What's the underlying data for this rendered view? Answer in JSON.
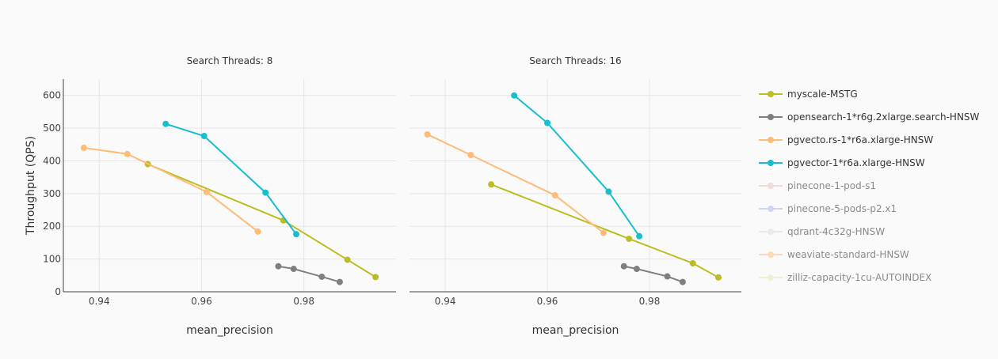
{
  "chart_data": [
    {
      "type": "line",
      "title": "Search Threads: 8",
      "xlabel": "mean_precision",
      "ylabel": "Throughput (QPS)",
      "xlim": [
        0.933,
        0.998
      ],
      "ylim": [
        0,
        650
      ],
      "xticks": [
        0.94,
        0.96,
        0.98
      ],
      "xtick_labels": [
        "0.94",
        "0.96",
        "0.98"
      ],
      "yticks": [
        0,
        100,
        200,
        300,
        400,
        500,
        600
      ],
      "ytick_labels": [
        "0",
        "100",
        "200",
        "300",
        "400",
        "500",
        "600"
      ],
      "grid": true,
      "series": [
        {
          "name": "myscale-MSTG",
          "x": [
            0.9495,
            0.976,
            0.9885,
            0.994
          ],
          "y": [
            390,
            218,
            98,
            45
          ]
        },
        {
          "name": "opensearch-1*r6g.2xlarge.search-HNSW",
          "x": [
            0.975,
            0.978,
            0.9835,
            0.987
          ],
          "y": [
            78,
            70,
            46,
            30
          ]
        },
        {
          "name": "pgvecto.rs-1*r6a.xlarge-HNSW",
          "x": [
            0.937,
            0.9455,
            0.961,
            0.971
          ],
          "y": [
            440,
            421,
            305,
            184
          ]
        },
        {
          "name": "pgvector-1*r6a.xlarge-HNSW",
          "x": [
            0.953,
            0.9605,
            0.9725,
            0.9785
          ],
          "y": [
            513,
            476,
            303,
            176
          ]
        }
      ]
    },
    {
      "type": "line",
      "title": "Search Threads: 16",
      "xlabel": "mean_precision",
      "ylabel": "",
      "xlim": [
        0.933,
        0.998
      ],
      "ylim": [
        0,
        650
      ],
      "xticks": [
        0.94,
        0.96,
        0.98
      ],
      "xtick_labels": [
        "0.94",
        "0.96",
        "0.98"
      ],
      "yticks": [
        0,
        100,
        200,
        300,
        400,
        500,
        600
      ],
      "ytick_labels": [],
      "grid": true,
      "series": [
        {
          "name": "myscale-MSTG",
          "x": [
            0.949,
            0.976,
            0.9885,
            0.9935
          ],
          "y": [
            328,
            162,
            87,
            44
          ]
        },
        {
          "name": "opensearch-1*r6g.2xlarge.search-HNSW",
          "x": [
            0.975,
            0.9775,
            0.9835,
            0.9865
          ],
          "y": [
            78,
            70,
            47,
            30
          ]
        },
        {
          "name": "pgvecto.rs-1*r6a.xlarge-HNSW",
          "x": [
            0.9365,
            0.945,
            0.9615,
            0.971
          ],
          "y": [
            481,
            418,
            295,
            180
          ]
        },
        {
          "name": "pgvector-1*r6a.xlarge-HNSW",
          "x": [
            0.9535,
            0.96,
            0.972,
            0.978
          ],
          "y": [
            600,
            516,
            306,
            170
          ]
        }
      ]
    }
  ],
  "legend": {
    "placement": "right",
    "items": [
      {
        "label": "myscale-MSTG",
        "color": "#bcbd22",
        "visible": true
      },
      {
        "label": "opensearch-1*r6g.2xlarge.search-HNSW",
        "color": "#7f7f7f",
        "visible": true
      },
      {
        "label": "pgvecto.rs-1*r6a.xlarge-HNSW",
        "color": "#ffbb78",
        "visible": true
      },
      {
        "label": "pgvector-1*r6a.xlarge-HNSW",
        "color": "#17becf",
        "visible": true
      },
      {
        "label": "pinecone-1-pod-s1",
        "color": "#e0c2bd",
        "visible": false
      },
      {
        "label": "pinecone-5-pods-p2.x1",
        "color": "#aab4e8",
        "visible": false
      },
      {
        "label": "qdrant-4c32g-HNSW",
        "color": "#dcdcdc",
        "visible": false
      },
      {
        "label": "weaviate-standard-HNSW",
        "color": "#ffbb78",
        "visible": false
      },
      {
        "label": "zilliz-capacity-1cu-AUTOINDEX",
        "color": "#e8e6b4",
        "visible": false
      }
    ]
  },
  "colors": {
    "background": "#fafafa",
    "grid": "#e6e6e6",
    "axis": "#444444"
  }
}
